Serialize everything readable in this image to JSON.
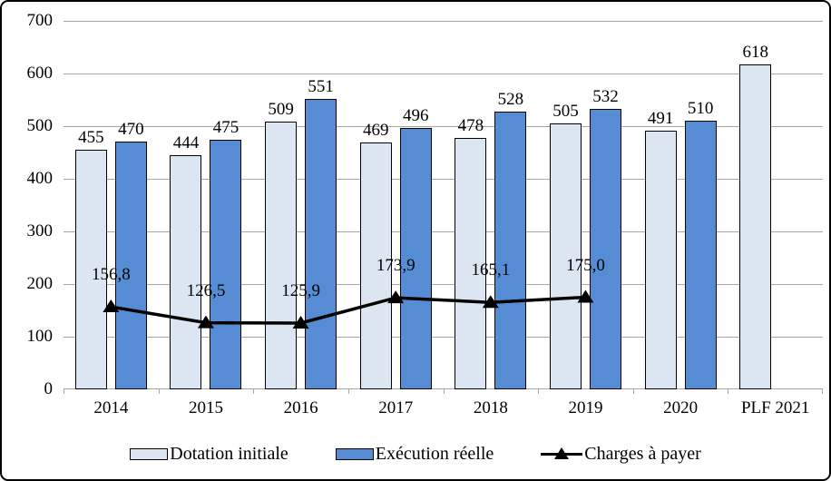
{
  "chart_data": {
    "type": "bar+line",
    "title": "",
    "categories": [
      "2014",
      "2015",
      "2016",
      "2017",
      "2018",
      "2019",
      "2020",
      "PLF 2021"
    ],
    "series": [
      {
        "name": "Dotation initiale",
        "type": "bar",
        "color": "#dce6f2",
        "values": [
          455,
          444,
          509,
          469,
          478,
          505,
          491,
          618
        ],
        "value_labels": [
          "455",
          "444",
          "509",
          "469",
          "478",
          "505",
          "491",
          "618"
        ]
      },
      {
        "name": "Exécution réelle",
        "type": "bar",
        "color": "#568cd4",
        "values": [
          470,
          475,
          551,
          496,
          528,
          532,
          510,
          null
        ],
        "value_labels": [
          "470",
          "475",
          "551",
          "496",
          "528",
          "532",
          "510",
          null
        ]
      },
      {
        "name": "Charges à payer",
        "type": "line",
        "color": "#000000",
        "values": [
          156.8,
          126.5,
          125.9,
          173.9,
          165.1,
          175.0,
          null,
          null
        ],
        "value_labels": [
          "156,8",
          "126,5",
          "125,9",
          "173,9",
          "165,1",
          "175,0",
          null,
          null
        ]
      }
    ],
    "ylim": [
      0,
      700
    ],
    "yticks": [
      0,
      100,
      200,
      300,
      400,
      500,
      600,
      700
    ],
    "grid": true,
    "legend_position": "bottom"
  },
  "style": {
    "gridline_color": "#a6a6a6",
    "bar_border_color": "#000000",
    "text_color": "#000000",
    "frame_color": "#000000",
    "background_color": "#ffffff"
  }
}
